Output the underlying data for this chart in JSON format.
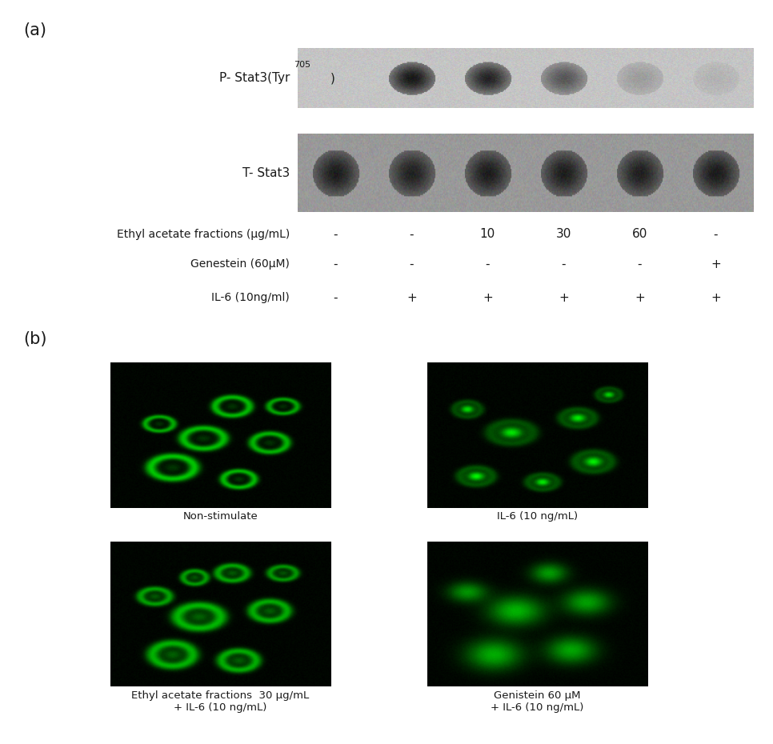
{
  "panel_a_label": "(a)",
  "panel_b_label": "(b)",
  "row_labels": [
    "Ethyl acetate fractions (μg/mL)",
    "Genestein (60μM)",
    "IL-6 (10ng/ml)"
  ],
  "col_values": [
    [
      "-",
      "-",
      "-"
    ],
    [
      "-",
      "-",
      "+"
    ],
    [
      "10",
      "-",
      "+"
    ],
    [
      "30",
      "-",
      "+"
    ],
    [
      "60",
      "-",
      "+"
    ],
    [
      "-",
      "+",
      "+"
    ]
  ],
  "image_labels": [
    "Non-stimulate",
    "IL-6 (10 ng/mL)",
    "Ethyl acetate fractions  30 μg/mL\n+ IL-6 (10 ng/mL)",
    "Genistein 60 μM\n+ IL-6 (10 ng/mL)"
  ],
  "bg_color": "#ffffff",
  "text_color": "#1a1a1a",
  "blot_p_bg": "#c0c0c0",
  "blot_t_bg": "#909090",
  "p_intensities": [
    0.0,
    0.95,
    0.88,
    0.6,
    0.22,
    0.1
  ],
  "t_intensities": [
    0.88,
    0.85,
    0.88,
    0.87,
    0.86,
    0.89
  ]
}
